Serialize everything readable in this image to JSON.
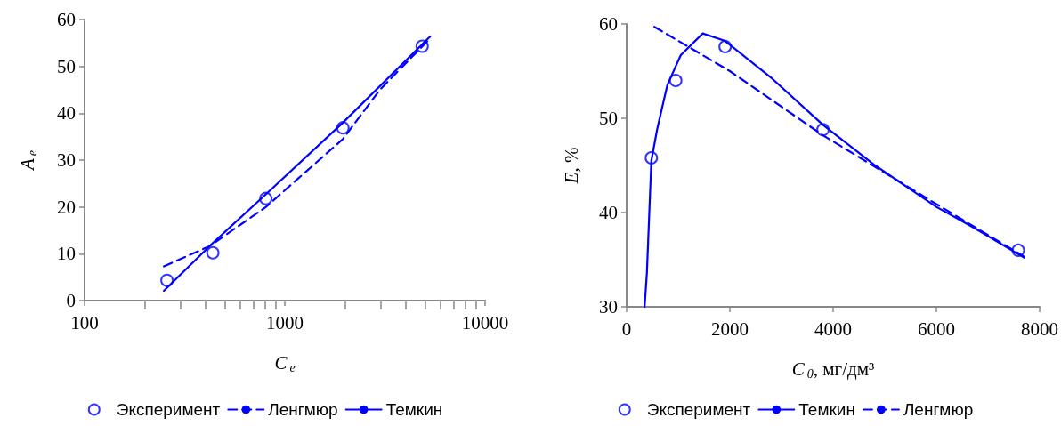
{
  "chart_data": [
    {
      "type": "line",
      "xlabel": "C$_{e}$",
      "ylabel": "A$_{e}$",
      "log": "x",
      "xlim": [
        100,
        10000
      ],
      "xticks": [
        100,
        1000,
        10000
      ],
      "ylim": [
        0,
        60
      ],
      "yticks": [
        0,
        10,
        20,
        30,
        40,
        50,
        60
      ],
      "grid": false,
      "legend": "bottom",
      "series": [
        {
          "name": "Эксперимент",
          "type": "scatter",
          "marker": "circle",
          "color": "#0000ff",
          "x": [
            258,
            437,
            804,
            1950,
            4850
          ],
          "values": [
            4.3,
            10.2,
            21.8,
            36.9,
            54.3
          ]
        },
        {
          "name": "Ленгмюр",
          "type": "line",
          "marker": "none",
          "line_style": "dashed",
          "color": "#0000ff",
          "x": [
            249,
            420,
            800,
            1950,
            2980,
            5320
          ],
          "values": [
            7.3,
            11.6,
            19.9,
            34.5,
            45,
            56
          ]
        },
        {
          "name": "Темкин",
          "type": "line",
          "marker": "none",
          "line_style": "solid",
          "color": "#0000ff",
          "x": [
            249,
            437,
            804,
            1950,
            5320
          ],
          "values": [
            2.1,
            12.3,
            22.7,
            38,
            56.4
          ]
        }
      ]
    },
    {
      "type": "line",
      "xlabel": "C$_{0}$, мг/дм³",
      "ylabel": "E, %",
      "xlim": [
        0,
        8000
      ],
      "xticks": [
        0,
        2000,
        4000,
        6000,
        8000
      ],
      "ylim": [
        30,
        60
      ],
      "yticks": [
        30,
        40,
        50,
        60
      ],
      "grid": false,
      "legend": "bottom",
      "series": [
        {
          "name": "Эксперимент",
          "type": "scatter",
          "marker": "circle",
          "color": "#0000ff",
          "x": [
            479,
            951,
            1908,
            3803,
            7587
          ],
          "values": [
            45.8,
            54,
            57.6,
            48.8,
            36
          ]
        },
        {
          "name": "Темкин",
          "type": "line",
          "marker": "none",
          "line_style": "solid",
          "color": "#0000ff",
          "x": [
            348,
            393,
            479,
            590,
            787,
            1049,
            1475,
            1908,
            2820,
            3803,
            4787,
            6000,
            6754,
            7705
          ],
          "values": [
            30,
            33.6,
            45.5,
            48.8,
            53.5,
            56.7,
            59,
            58.2,
            54.2,
            49.3,
            45.1,
            40.6,
            38.3,
            35.2
          ]
        },
        {
          "name": "Ленгмюр",
          "type": "line",
          "marker": "none",
          "line_style": "dashed",
          "color": "#0000ff",
          "x": [
            538,
            2000,
            3803,
            6000,
            7705
          ],
          "values": [
            59.7,
            55,
            48.2,
            40.9,
            35.3
          ]
        }
      ]
    }
  ]
}
